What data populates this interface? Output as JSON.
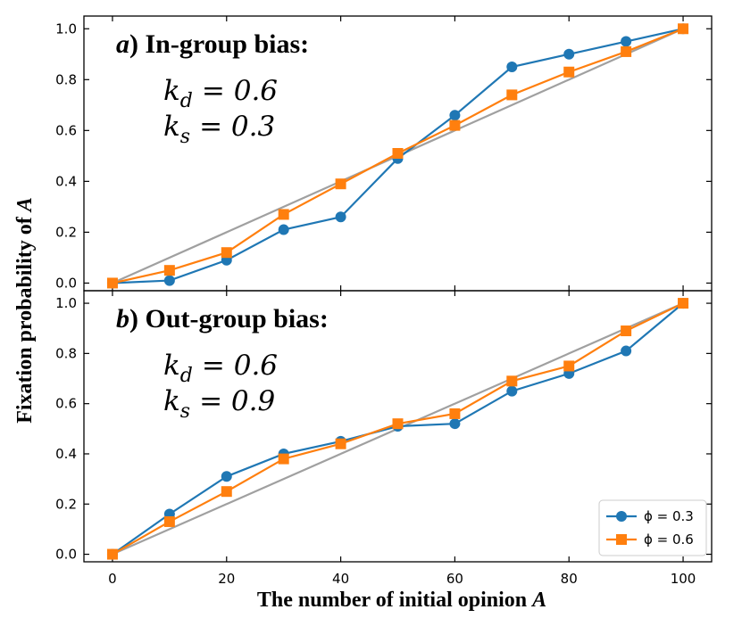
{
  "chart_data": [
    {
      "type": "line",
      "panel": "a",
      "title_letter": "a",
      "title_text": ") In-group bias:",
      "params": [
        {
          "symbol": "k",
          "subscript": "d",
          "value": "= 0.6"
        },
        {
          "symbol": "k",
          "subscript": "s",
          "value": "= 0.3"
        }
      ],
      "x": [
        0,
        10,
        20,
        30,
        40,
        50,
        60,
        70,
        80,
        90,
        100
      ],
      "series": [
        {
          "name": "phi=0.3",
          "color": "#1f77b4",
          "marker": "circle",
          "values": [
            0.0,
            0.01,
            0.09,
            0.21,
            0.26,
            0.49,
            0.66,
            0.85,
            0.9,
            0.95,
            1.0
          ]
        },
        {
          "name": "phi=0.6",
          "color": "#ff7f0e",
          "marker": "square",
          "values": [
            0.0,
            0.05,
            0.12,
            0.27,
            0.39,
            0.51,
            0.62,
            0.74,
            0.83,
            0.91,
            1.0
          ]
        }
      ],
      "reference": {
        "x": [
          0,
          100
        ],
        "y": [
          0,
          1
        ],
        "color": "#a0a0a0"
      },
      "xlim": [
        -5,
        105
      ],
      "ylim": [
        -0.03,
        1.05
      ],
      "yticks": [
        0.0,
        0.2,
        0.4,
        0.6,
        0.8,
        1.0
      ],
      "ytick_labels": [
        "0.0",
        "0.2",
        "0.4",
        "0.6",
        "0.8",
        "1.0"
      ],
      "legend": null
    },
    {
      "type": "line",
      "panel": "b",
      "title_letter": "b",
      "title_text": ") Out-group bias:",
      "params": [
        {
          "symbol": "k",
          "subscript": "d",
          "value": "= 0.6"
        },
        {
          "symbol": "k",
          "subscript": "s",
          "value": "= 0.9"
        }
      ],
      "x": [
        0,
        10,
        20,
        30,
        40,
        50,
        60,
        70,
        80,
        90,
        100
      ],
      "series": [
        {
          "name": "phi=0.3",
          "color": "#1f77b4",
          "marker": "circle",
          "values": [
            0.0,
            0.16,
            0.31,
            0.4,
            0.45,
            0.51,
            0.52,
            0.65,
            0.72,
            0.81,
            1.0
          ]
        },
        {
          "name": "phi=0.6",
          "color": "#ff7f0e",
          "marker": "square",
          "values": [
            0.0,
            0.13,
            0.25,
            0.38,
            0.44,
            0.52,
            0.56,
            0.69,
            0.75,
            0.89,
            1.0
          ]
        }
      ],
      "reference": {
        "x": [
          0,
          100
        ],
        "y": [
          0,
          1
        ],
        "color": "#a0a0a0"
      },
      "xlim": [
        -5,
        105
      ],
      "ylim": [
        -0.03,
        1.05
      ],
      "yticks": [
        0.0,
        0.2,
        0.4,
        0.6,
        0.8,
        1.0
      ],
      "ytick_labels": [
        "0.0",
        "0.2",
        "0.4",
        "0.6",
        "0.8",
        "1.0"
      ],
      "xticks": [
        0,
        20,
        40,
        60,
        80,
        100
      ],
      "xtick_labels": [
        "0",
        "20",
        "40",
        "60",
        "80",
        "100"
      ],
      "legend": {
        "location": "lower-right",
        "entries": [
          {
            "label": "ϕ = 0.3",
            "color": "#1f77b4",
            "marker": "circle"
          },
          {
            "label": "ϕ = 0.6",
            "color": "#ff7f0e",
            "marker": "square"
          }
        ]
      }
    }
  ],
  "axes": {
    "ylabel": "Fixation probability of ",
    "ylabel_var": "A",
    "xlabel": "The number of initial opinion ",
    "xlabel_var": "A"
  }
}
